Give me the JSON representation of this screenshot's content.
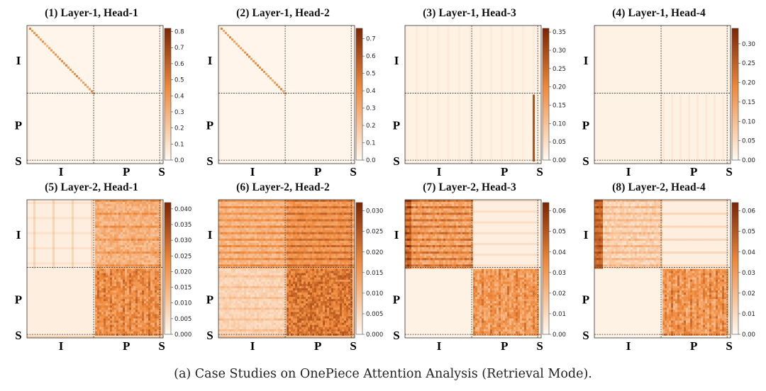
{
  "caption": "(a) Case Studies on OnePiece Attention Analysis (Retrieval Mode).",
  "colormap": {
    "low": "#fff8ef",
    "mid": "#f08a3c",
    "high": "#7f2704"
  },
  "chart_data": [
    {
      "type": "heatmap",
      "title": "(1) Layer-1, Head-1",
      "row_labels": [
        "I",
        "P",
        "S"
      ],
      "col_labels": [
        "I",
        "P",
        "S"
      ],
      "colorbar_ticks": [
        "0.0",
        "0.1",
        "0.2",
        "0.3",
        "0.4",
        "0.5",
        "0.6",
        "0.7",
        "0.8"
      ],
      "vmin": 0.0,
      "vmax": 0.82,
      "pattern": "diagonal attention within I-I block; weak first-column attention in P rows; mostly near zero"
    },
    {
      "type": "heatmap",
      "title": "(2) Layer-1, Head-2",
      "row_labels": [
        "I",
        "P",
        "S"
      ],
      "col_labels": [
        "I",
        "P",
        "S"
      ],
      "colorbar_ticks": [
        "0.0",
        "0.1",
        "0.2",
        "0.3",
        "0.4",
        "0.5",
        "0.6",
        "0.7"
      ],
      "vmin": 0.0,
      "vmax": 0.76,
      "pattern": "diagonal attention within I-I block; weak first-column attention; mostly near zero"
    },
    {
      "type": "heatmap",
      "title": "(3) Layer-1, Head-3",
      "row_labels": [
        "I",
        "P",
        "S"
      ],
      "col_labels": [
        "I",
        "P",
        "S"
      ],
      "colorbar_ticks": [
        "0.00",
        "0.05",
        "0.10",
        "0.15",
        "0.20",
        "0.25",
        "0.30",
        "0.35"
      ],
      "vmin": 0.0,
      "vmax": 0.36,
      "pattern": "faint vertical stripes; one strong vertical line near end of P columns in P rows"
    },
    {
      "type": "heatmap",
      "title": "(4) Layer-1, Head-4",
      "row_labels": [
        "I",
        "P",
        "S"
      ],
      "col_labels": [
        "I",
        "P",
        "S"
      ],
      "colorbar_ticks": [
        "0.00",
        "0.05",
        "0.10",
        "0.15",
        "0.20",
        "0.25",
        "0.30"
      ],
      "vmin": 0.0,
      "vmax": 0.34,
      "pattern": "faint uniform attention; slight stripes in P-P block"
    },
    {
      "type": "heatmap",
      "title": "(5) Layer-2, Head-1",
      "row_labels": [
        "I",
        "P",
        "S"
      ],
      "col_labels": [
        "I",
        "P",
        "S"
      ],
      "colorbar_ticks": [
        "0.000",
        "0.005",
        "0.010",
        "0.015",
        "0.020",
        "0.025",
        "0.030",
        "0.035",
        "0.040"
      ],
      "vmin": 0.0,
      "vmax": 0.042,
      "pattern": "I rows attend to P columns with horizontal banding; P rows attend strongly to P columns with vertical stripes"
    },
    {
      "type": "heatmap",
      "title": "(6) Layer-2, Head-2",
      "row_labels": [
        "I",
        "P",
        "S"
      ],
      "col_labels": [
        "I",
        "P",
        "S"
      ],
      "colorbar_ticks": [
        "0.000",
        "0.005",
        "0.010",
        "0.015",
        "0.020",
        "0.025",
        "0.030"
      ],
      "vmin": 0.0,
      "vmax": 0.032,
      "pattern": "I rows banded across all columns; P rows strongly attend to P columns"
    },
    {
      "type": "heatmap",
      "title": "(7) Layer-2, Head-3",
      "row_labels": [
        "I",
        "P",
        "S"
      ],
      "col_labels": [
        "I",
        "P",
        "S"
      ],
      "colorbar_ticks": [
        "0.00",
        "0.01",
        "0.02",
        "0.03",
        "0.04",
        "0.05",
        "0.06"
      ],
      "vmin": 0.0,
      "vmax": 0.064,
      "pattern": "I-I block strongly banded; P rows attend to P columns with vertical stripes"
    },
    {
      "type": "heatmap",
      "title": "(8) Layer-2, Head-4",
      "row_labels": [
        "I",
        "P",
        "S"
      ],
      "col_labels": [
        "I",
        "P",
        "S"
      ],
      "colorbar_ticks": [
        "0.00",
        "0.01",
        "0.02",
        "0.03",
        "0.04",
        "0.05",
        "0.06"
      ],
      "vmin": 0.0,
      "vmax": 0.064,
      "pattern": "I rows attend mostly to I columns (left edge strong); P rows attend to P columns with vertical stripes"
    }
  ]
}
